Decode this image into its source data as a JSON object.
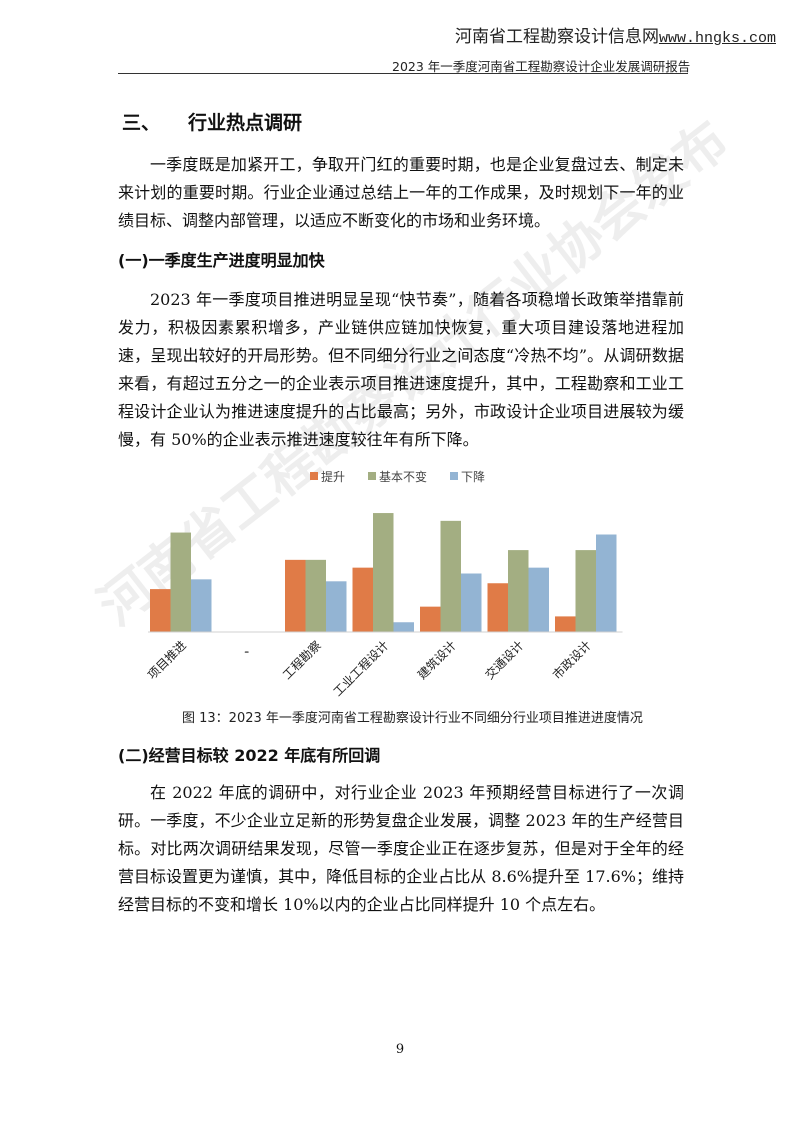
{
  "header": {
    "site_name": "河南省工程勘察设计信息网",
    "site_url": "www.hngks.com",
    "running_title": "2023 年一季度河南省工程勘察设计企业发展调研报告"
  },
  "watermark": "河南省工程勘察设计行业协会发布",
  "section": {
    "number": "三、",
    "title": "行业热点调研",
    "intro": "一季度既是加紧开工，争取开门红的重要时期，也是企业复盘过去、制定未来计划的重要时期。行业企业通过总结上一年的工作成果，及时规划下一年的业绩目标、调整内部管理，以适应不断变化的市场和业务环境。"
  },
  "sub1": {
    "heading": "(一)一季度生产进度明显加快",
    "body": "2023 年一季度项目推进明显呈现“快节奏”，随着各项稳增长政策举措靠前发力，积极因素累积增多，产业链供应链加快恢复，重大项目建设落地进程加速，呈现出较好的开局形势。但不同细分行业之间态度“冷热不均”。从调研数据来看，有超过五分之一的企业表示项目推进速度提升，其中，工程勘察和工业工程设计企业认为推进速度提升的占比最高；另外，市政设计企业项目进展较为缓慢，有 50%的企业表示推进速度较往年有所下降。"
  },
  "chart_data": {
    "type": "bar",
    "categories": [
      "项目推进",
      "、",
      "工程勘察",
      "工业工程设计",
      "建筑设计",
      "交通设计",
      "市政设计"
    ],
    "series": [
      {
        "name": "提升",
        "color": "#E07B47",
        "values": [
          22,
          0,
          37,
          33,
          13,
          25,
          8
        ]
      },
      {
        "name": "基本不变",
        "color": "#A3AE82",
        "values": [
          51,
          0,
          37,
          61,
          57,
          42,
          42
        ]
      },
      {
        "name": "下降",
        "color": "#93B4D3",
        "values": [
          27,
          0,
          26,
          5,
          30,
          33,
          50
        ]
      }
    ],
    "ylim": [
      0,
      65
    ],
    "grid": false,
    "legend": "top",
    "title": "",
    "xlabel": "",
    "ylabel": "",
    "caption": "图 13：2023 年一季度河南省工程勘察设计行业不同细分行业项目推进进度情况"
  },
  "sub2": {
    "heading": "(二)经营目标较 2022 年底有所回调",
    "body": "在 2022 年底的调研中，对行业企业 2023 年预期经营目标进行了一次调研。一季度，不少企业立足新的形势复盘企业发展，调整 2023 年的生产经营目标。对比两次调研结果发现，尽管一季度企业正在逐步复苏，但是对于全年的经营目标设置更为谨慎，其中，降低目标的企业占比从 8.6%提升至 17.6%；维持经营目标的不变和增长 10%以内的企业占比同样提升 10 个点左右。"
  },
  "page_number": "9"
}
